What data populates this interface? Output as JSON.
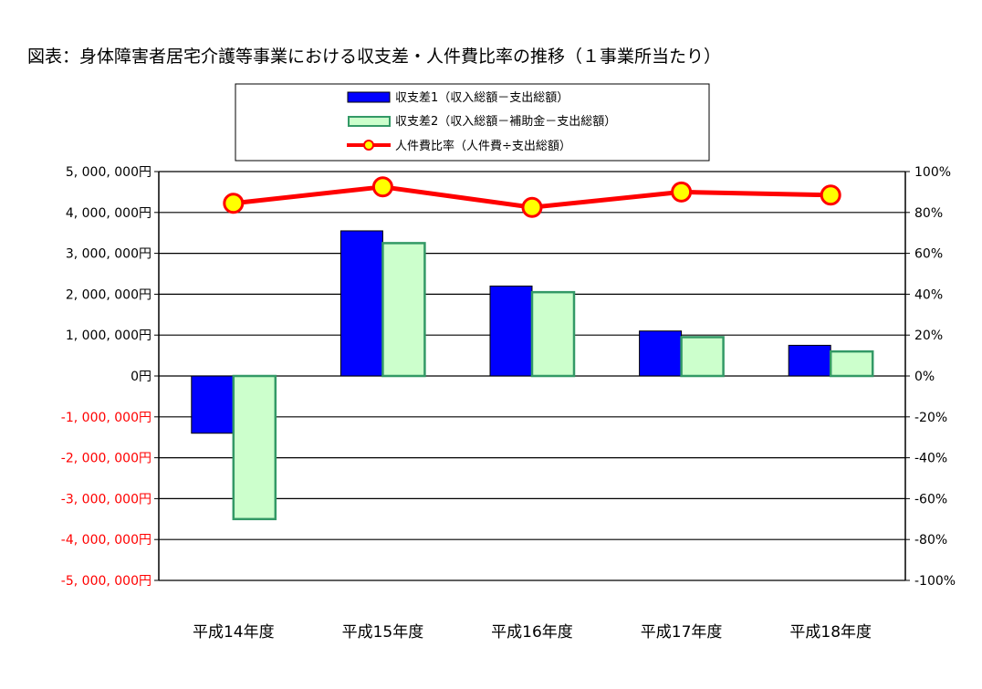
{
  "title": "図表：身体障害者居宅介護等事業における収支差・人件費比率の推移（１事業所当たり）",
  "colors": {
    "series1_fill": "#0000ff",
    "series2_fill": "#ccffcc",
    "series2_border": "#339966",
    "line": "#ff0000",
    "marker": "#ffff00",
    "negative_tick": "#ff0000"
  },
  "chart_data": {
    "type": "bar",
    "categories": [
      "平成14年度",
      "平成15年度",
      "平成16年度",
      "平成17年度",
      "平成18年度"
    ],
    "series": [
      {
        "name": "収支差1（収入総額－支出総額）",
        "axis": "left",
        "chart_type": "bar",
        "values": [
          -1400000,
          3550000,
          2200000,
          1100000,
          750000
        ]
      },
      {
        "name": "収支差2（収入総額－補助金－支出総額）",
        "axis": "left",
        "chart_type": "bar",
        "values": [
          -3500000,
          3250000,
          2050000,
          950000,
          600000
        ]
      },
      {
        "name": "人件費比率（人件費÷支出総額）",
        "axis": "right",
        "chart_type": "line",
        "values": [
          84.5,
          92.5,
          82.5,
          90,
          88.5
        ]
      }
    ],
    "ylim": [
      -5000000,
      5000000
    ],
    "y2lim": [
      -100,
      100
    ],
    "yticks": [
      "5, 000, 000円",
      "4, 000, 000円",
      "3, 000, 000円",
      "2, 000, 000円",
      "1, 000, 000円",
      "0円",
      "-1, 000, 000円",
      "-2, 000, 000円",
      "-3, 000, 000円",
      "-4, 000, 000円",
      "-5, 000, 000円"
    ],
    "y2ticks": [
      "100%",
      "80%",
      "60%",
      "40%",
      "20%",
      "0%",
      "-20%",
      "-40%",
      "-60%",
      "-80%",
      "-100%"
    ],
    "grid": true,
    "legend_position": "top-center"
  }
}
